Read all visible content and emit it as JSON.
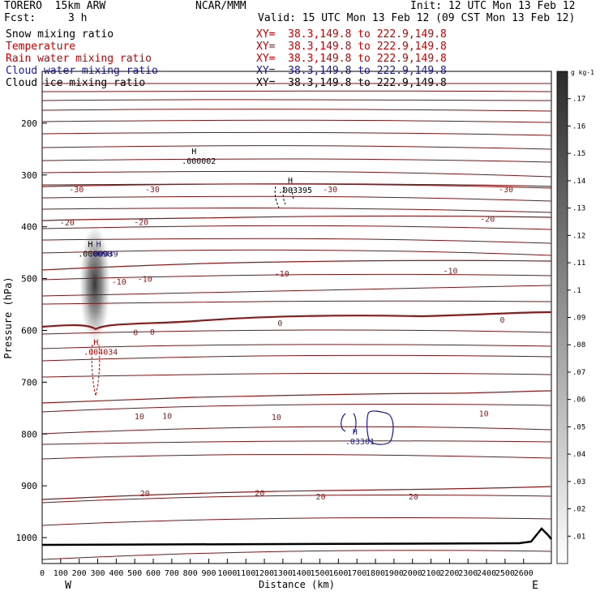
{
  "header": {
    "model": "TORERO  15km ARW",
    "org": "NCAR/MMM",
    "init": "Init: 12 UTC Mon 13 Feb 12",
    "fcst_label": "Fcst:",
    "fcst_value": "3 h",
    "valid": "Valid: 15 UTC Mon 13 Feb 12 (09 CST Mon 13 Feb 12)"
  },
  "fields": [
    {
      "name": "Snow mixing ratio",
      "xy": "XY=  38.3,149.8 to 222.9,149.8",
      "color": "#000000"
    },
    {
      "name": "Temperature",
      "xy": "XY=  38.3,149.8 to 222.9,149.8",
      "color": "#cc0000"
    },
    {
      "name": "Rain water mixing ratio",
      "xy": "XY=  38.3,149.8 to 222.9,149.8",
      "color": "#cc0000"
    },
    {
      "name": "Cloud water mixing ratio",
      "xy": "XY=  38.3,149.8 to 222.9,149.8",
      "color": "#1a1aa0"
    },
    {
      "name": "Cloud ice mixing ratio",
      "xy": "XY=  38.3,149.8 to 222.9,149.8",
      "color": "#000000"
    }
  ],
  "chart_data": {
    "type": "contour-cross-section",
    "xlabel": "Distance (km)",
    "ylabel": "Pressure (hPa)",
    "xlim": [
      0,
      2750
    ],
    "ylim": [
      1050,
      100
    ],
    "x_ticks": [
      0,
      100,
      200,
      300,
      400,
      500,
      600,
      700,
      800,
      900,
      1000,
      1100,
      1200,
      1300,
      1400,
      1500,
      1600,
      1700,
      1800,
      1900,
      2000,
      2100,
      2200,
      2300,
      2400,
      2500,
      2600
    ],
    "y_ticks": [
      200,
      300,
      400,
      500,
      600,
      700,
      800,
      900,
      1000
    ],
    "endpoints": {
      "left": "W",
      "right": "E"
    },
    "temperature_labels": [
      {
        "text": "-30",
        "x": 185,
        "p": 327
      },
      {
        "text": "-30",
        "x": 595,
        "p": 327
      },
      {
        "text": "-30",
        "x": 1555,
        "p": 327
      },
      {
        "text": "-30",
        "x": 2505,
        "p": 327
      },
      {
        "text": "-20",
        "x": 135,
        "p": 391
      },
      {
        "text": "-20",
        "x": 535,
        "p": 390
      },
      {
        "text": "-20",
        "x": 2405,
        "p": 384
      },
      {
        "text": "-10",
        "x": 415,
        "p": 505
      },
      {
        "text": "-10",
        "x": 555,
        "p": 500
      },
      {
        "text": "-10",
        "x": 1295,
        "p": 490
      },
      {
        "text": "-10",
        "x": 2205,
        "p": 484
      },
      {
        "text": "0",
        "x": 505,
        "p": 603
      },
      {
        "text": "0",
        "x": 595,
        "p": 602
      },
      {
        "text": "0",
        "x": 1285,
        "p": 585
      },
      {
        "text": "0",
        "x": 2485,
        "p": 579
      },
      {
        "text": "10",
        "x": 525,
        "p": 765
      },
      {
        "text": "10",
        "x": 675,
        "p": 764
      },
      {
        "text": "10",
        "x": 1265,
        "p": 767
      },
      {
        "text": "10",
        "x": 2385,
        "p": 760
      },
      {
        "text": "20",
        "x": 555,
        "p": 914
      },
      {
        "text": "20",
        "x": 1175,
        "p": 913
      },
      {
        "text": "20",
        "x": 1505,
        "p": 920
      },
      {
        "text": "20",
        "x": 2005,
        "p": 920
      }
    ],
    "maxima": [
      {
        "label": "H",
        "value": ".000002",
        "x": 820,
        "p": 260,
        "color": "#000000"
      },
      {
        "label": "H",
        "value": ".003395",
        "x": 1340,
        "p": 316,
        "color": "#000000"
      },
      {
        "label": "H",
        "value": ".000098",
        "x": 260,
        "p": 439,
        "color": "#000000"
      },
      {
        "label": "H",
        "value": ".00039",
        "x": 305,
        "p": 439,
        "color": "#1a1aa0"
      },
      {
        "label": "H",
        "value": ".004034",
        "x": 290,
        "p": 628,
        "color": "#cc0000"
      },
      {
        "label": "H",
        "value": ".03301",
        "x": 1690,
        "p": 801,
        "color": "#1a1aa0"
      }
    ],
    "colorbar": {
      "unit": "g kg-1",
      "ticks": [
        ".01",
        ".02",
        ".03",
        ".04",
        ".05",
        ".06",
        ".07",
        ".08",
        ".09",
        ".1",
        ".11",
        ".12",
        ".13",
        ".14",
        ".15",
        ".16",
        ".17"
      ]
    }
  }
}
